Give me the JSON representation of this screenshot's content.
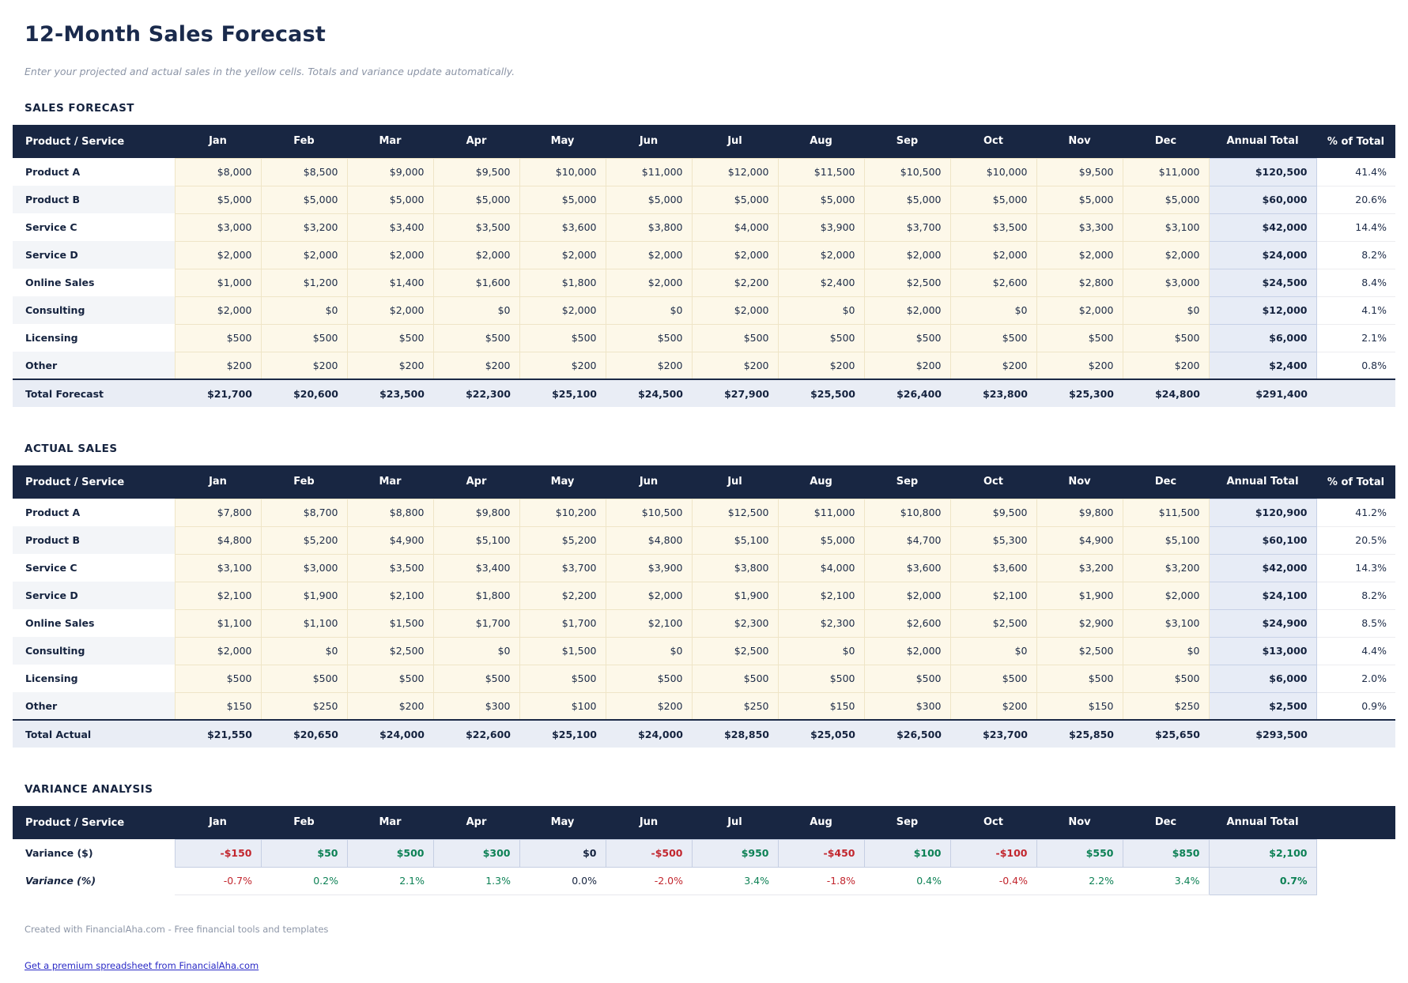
{
  "page": {
    "title": "12-Month Sales Forecast",
    "subtitle": "Enter your projected and actual sales in the yellow cells. Totals and variance update automatically.",
    "footer_note": "Created with FinancialAha.com - Free financial tools and templates",
    "footer_link": "Get a premium spreadsheet from FinancialAha.com"
  },
  "colors": {
    "header_bg": "#182642",
    "title_navy": "#1a2a4c",
    "input_cell_bg": "#fdf8e9",
    "annual_cell_bg": "#e7ecf6",
    "total_row_bg": "#e9edf5",
    "positive": "#0d8155",
    "negative": "#c2262e",
    "link": "#2a2ac6"
  },
  "tables": [
    {
      "id": "forecast",
      "section_title": "SALES FORECAST",
      "columns": [
        "Product / Service",
        "Jan",
        "Feb",
        "Mar",
        "Apr",
        "May",
        "Jun",
        "Jul",
        "Aug",
        "Sep",
        "Oct",
        "Nov",
        "Dec",
        "Annual Total",
        "% of Total"
      ],
      "rows": [
        {
          "label": "Product A",
          "cells": [
            "$8,000",
            "$8,500",
            "$9,000",
            "$9,500",
            "$10,000",
            "$11,000",
            "$12,000",
            "$11,500",
            "$10,500",
            "$10,000",
            "$9,500",
            "$11,000"
          ],
          "annual_total": "$120,500",
          "pct_of_total": "41.4%"
        },
        {
          "label": "Product B",
          "cells": [
            "$5,000",
            "$5,000",
            "$5,000",
            "$5,000",
            "$5,000",
            "$5,000",
            "$5,000",
            "$5,000",
            "$5,000",
            "$5,000",
            "$5,000",
            "$5,000"
          ],
          "annual_total": "$60,000",
          "pct_of_total": "20.6%"
        },
        {
          "label": "Service C",
          "cells": [
            "$3,000",
            "$3,200",
            "$3,400",
            "$3,500",
            "$3,600",
            "$3,800",
            "$4,000",
            "$3,900",
            "$3,700",
            "$3,500",
            "$3,300",
            "$3,100"
          ],
          "annual_total": "$42,000",
          "pct_of_total": "14.4%"
        },
        {
          "label": "Service D",
          "cells": [
            "$2,000",
            "$2,000",
            "$2,000",
            "$2,000",
            "$2,000",
            "$2,000",
            "$2,000",
            "$2,000",
            "$2,000",
            "$2,000",
            "$2,000",
            "$2,000"
          ],
          "annual_total": "$24,000",
          "pct_of_total": "8.2%"
        },
        {
          "label": "Online Sales",
          "cells": [
            "$1,000",
            "$1,200",
            "$1,400",
            "$1,600",
            "$1,800",
            "$2,000",
            "$2,200",
            "$2,400",
            "$2,500",
            "$2,600",
            "$2,800",
            "$3,000"
          ],
          "annual_total": "$24,500",
          "pct_of_total": "8.4%"
        },
        {
          "label": "Consulting",
          "cells": [
            "$2,000",
            "$0",
            "$2,000",
            "$0",
            "$2,000",
            "$0",
            "$2,000",
            "$0",
            "$2,000",
            "$0",
            "$2,000",
            "$0"
          ],
          "annual_total": "$12,000",
          "pct_of_total": "4.1%"
        },
        {
          "label": "Licensing",
          "cells": [
            "$500",
            "$500",
            "$500",
            "$500",
            "$500",
            "$500",
            "$500",
            "$500",
            "$500",
            "$500",
            "$500",
            "$500"
          ],
          "annual_total": "$6,000",
          "pct_of_total": "2.1%"
        },
        {
          "label": "Other",
          "cells": [
            "$200",
            "$200",
            "$200",
            "$200",
            "$200",
            "$200",
            "$200",
            "$200",
            "$200",
            "$200",
            "$200",
            "$200"
          ],
          "annual_total": "$2,400",
          "pct_of_total": "0.8%"
        }
      ],
      "total_row": {
        "label": "Total Forecast",
        "cells": [
          "$21,700",
          "$20,600",
          "$23,500",
          "$22,300",
          "$25,100",
          "$24,500",
          "$27,900",
          "$25,500",
          "$26,400",
          "$23,800",
          "$25,300",
          "$24,800"
        ],
        "annual_total": "$291,400",
        "pct_of_total": ""
      }
    },
    {
      "id": "actual",
      "section_title": "ACTUAL SALES",
      "columns": [
        "Product / Service",
        "Jan",
        "Feb",
        "Mar",
        "Apr",
        "May",
        "Jun",
        "Jul",
        "Aug",
        "Sep",
        "Oct",
        "Nov",
        "Dec",
        "Annual Total",
        "% of Total"
      ],
      "rows": [
        {
          "label": "Product A",
          "cells": [
            "$7,800",
            "$8,700",
            "$8,800",
            "$9,800",
            "$10,200",
            "$10,500",
            "$12,500",
            "$11,000",
            "$10,800",
            "$9,500",
            "$9,800",
            "$11,500"
          ],
          "annual_total": "$120,900",
          "pct_of_total": "41.2%"
        },
        {
          "label": "Product B",
          "cells": [
            "$4,800",
            "$5,200",
            "$4,900",
            "$5,100",
            "$5,200",
            "$4,800",
            "$5,100",
            "$5,000",
            "$4,700",
            "$5,300",
            "$4,900",
            "$5,100"
          ],
          "annual_total": "$60,100",
          "pct_of_total": "20.5%"
        },
        {
          "label": "Service C",
          "cells": [
            "$3,100",
            "$3,000",
            "$3,500",
            "$3,400",
            "$3,700",
            "$3,900",
            "$3,800",
            "$4,000",
            "$3,600",
            "$3,600",
            "$3,200",
            "$3,200"
          ],
          "annual_total": "$42,000",
          "pct_of_total": "14.3%"
        },
        {
          "label": "Service D",
          "cells": [
            "$2,100",
            "$1,900",
            "$2,100",
            "$1,800",
            "$2,200",
            "$2,000",
            "$1,900",
            "$2,100",
            "$2,000",
            "$2,100",
            "$1,900",
            "$2,000"
          ],
          "annual_total": "$24,100",
          "pct_of_total": "8.2%"
        },
        {
          "label": "Online Sales",
          "cells": [
            "$1,100",
            "$1,100",
            "$1,500",
            "$1,700",
            "$1,700",
            "$2,100",
            "$2,300",
            "$2,300",
            "$2,600",
            "$2,500",
            "$2,900",
            "$3,100"
          ],
          "annual_total": "$24,900",
          "pct_of_total": "8.5%"
        },
        {
          "label": "Consulting",
          "cells": [
            "$2,000",
            "$0",
            "$2,500",
            "$0",
            "$1,500",
            "$0",
            "$2,500",
            "$0",
            "$2,000",
            "$0",
            "$2,500",
            "$0"
          ],
          "annual_total": "$13,000",
          "pct_of_total": "4.4%"
        },
        {
          "label": "Licensing",
          "cells": [
            "$500",
            "$500",
            "$500",
            "$500",
            "$500",
            "$500",
            "$500",
            "$500",
            "$500",
            "$500",
            "$500",
            "$500"
          ],
          "annual_total": "$6,000",
          "pct_of_total": "2.0%"
        },
        {
          "label": "Other",
          "cells": [
            "$150",
            "$250",
            "$200",
            "$300",
            "$100",
            "$200",
            "$250",
            "$150",
            "$300",
            "$200",
            "$150",
            "$250"
          ],
          "annual_total": "$2,500",
          "pct_of_total": "0.9%"
        }
      ],
      "total_row": {
        "label": "Total Actual",
        "cells": [
          "$21,550",
          "$20,650",
          "$24,000",
          "$22,600",
          "$25,100",
          "$24,000",
          "$28,850",
          "$25,050",
          "$26,500",
          "$23,700",
          "$25,850",
          "$25,650"
        ],
        "annual_total": "$293,500",
        "pct_of_total": ""
      }
    },
    {
      "id": "variance",
      "section_title": "VARIANCE ANALYSIS",
      "columns": [
        "Product / Service",
        "Jan",
        "Feb",
        "Mar",
        "Apr",
        "May",
        "Jun",
        "Jul",
        "Aug",
        "Sep",
        "Oct",
        "Nov",
        "Dec",
        "Annual Total",
        ""
      ],
      "rows": [
        {
          "label": "Variance ($)",
          "style": "currency",
          "cells": [
            "-$150",
            "$50",
            "$500",
            "$300",
            "$0",
            "-$500",
            "$950",
            "-$450",
            "$100",
            "-$100",
            "$550",
            "$850"
          ],
          "annual_total": "$2,100"
        },
        {
          "label": "Variance (%)",
          "style": "percent",
          "cells": [
            "-0.7%",
            "0.2%",
            "2.1%",
            "1.3%",
            "0.0%",
            "-2.0%",
            "3.4%",
            "-1.8%",
            "0.4%",
            "-0.4%",
            "2.2%",
            "3.4%"
          ],
          "annual_total": "0.7%"
        }
      ]
    }
  ]
}
